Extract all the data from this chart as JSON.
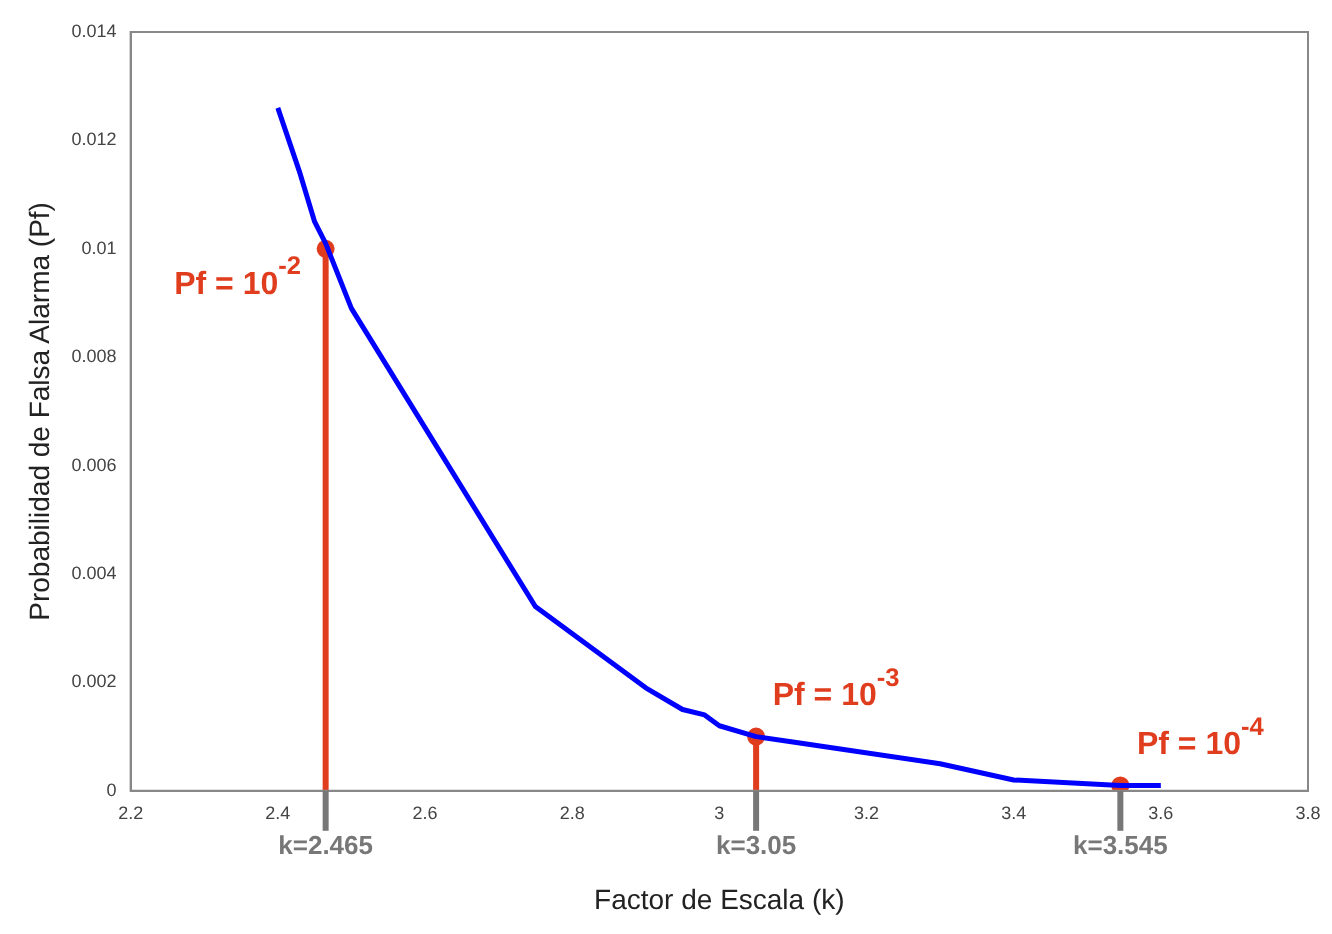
{
  "chart_data": {
    "type": "line",
    "xlabel": "Factor de Escala (k)",
    "ylabel": "Probabilidad de Falsa Alarma (Pf)",
    "xlim": [
      2.2,
      3.8
    ],
    "xticks": [
      2.2,
      2.4,
      2.6,
      2.8,
      3,
      3.2,
      3.4,
      3.6,
      3.8
    ],
    "ylim": [
      0,
      0.014
    ],
    "yticks": [
      0,
      0.002,
      0.004,
      0.006,
      0.008,
      0.01,
      0.012,
      0.014
    ],
    "grid": false,
    "legend": false,
    "marker": "none",
    "line_style": "solid",
    "series": [
      {
        "color": "#0000ff",
        "x": [
          2.4,
          2.43,
          2.45,
          2.465,
          2.5,
          2.6,
          2.75,
          2.9,
          2.95,
          2.98,
          3.0,
          3.05,
          3.1,
          3.3,
          3.4,
          3.545,
          3.6
        ],
        "values": [
          0.0126,
          0.0114,
          0.0105,
          0.0101,
          0.0089,
          0.0067,
          0.0034,
          0.0019,
          0.0015,
          0.0014,
          0.0012,
          0.001,
          0.0009,
          0.0005,
          0.0002,
          0.0001,
          0.0001
        ]
      },
      {
        "type": "lollipop",
        "marker": "circle",
        "color": "#e03c1e",
        "x": [
          2.465,
          3.05,
          3.545
        ],
        "values": [
          0.01,
          0.001,
          0.0001
        ]
      }
    ],
    "annotations": [
      {
        "text": "Pf = 10$^{-2}$",
        "x": 2.465,
        "y": 0.01
      },
      {
        "text": "Pf = 10$^{-3}$",
        "x": 3.05,
        "y": 0.001
      },
      {
        "text": "Pf = 10$^{-4}$",
        "x": 3.545,
        "y": 0.0001
      },
      {
        "text": "k=2.465",
        "x": 2.465
      },
      {
        "text": "k=3.05",
        "x": 3.05
      },
      {
        "text": "k=3.545",
        "x": 3.545
      }
    ]
  }
}
